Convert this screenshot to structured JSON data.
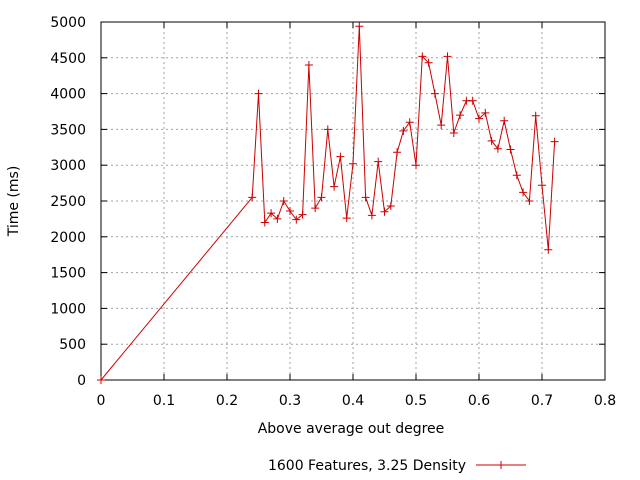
{
  "chart_data": {
    "type": "line",
    "title": "",
    "xlabel": "Above average out degree",
    "ylabel": "Time (ms)",
    "xlim": [
      0,
      0.8
    ],
    "ylim": [
      0,
      5000
    ],
    "xticks": [
      "0",
      "0.1",
      "0.2",
      "0.3",
      "0.4",
      "0.5",
      "0.6",
      "0.7",
      "0.8"
    ],
    "yticks": [
      "0",
      "500",
      "1000",
      "1500",
      "2000",
      "2500",
      "3000",
      "3500",
      "4000",
      "4500",
      "5000"
    ],
    "grid": true,
    "legend_position": "bottom",
    "series": [
      {
        "name": "1600 Features, 3.25 Density",
        "color": "#cc0000",
        "marker": "plus",
        "x": [
          0,
          0.24,
          0.25,
          0.26,
          0.27,
          0.28,
          0.29,
          0.3,
          0.31,
          0.32,
          0.33,
          0.34,
          0.35,
          0.36,
          0.37,
          0.38,
          0.39,
          0.4,
          0.41,
          0.42,
          0.43,
          0.44,
          0.45,
          0.46,
          0.47,
          0.48,
          0.49,
          0.5,
          0.51,
          0.52,
          0.53,
          0.54,
          0.55,
          0.56,
          0.57,
          0.58,
          0.59,
          0.6,
          0.61,
          0.62,
          0.63,
          0.64,
          0.65,
          0.66,
          0.67,
          0.68,
          0.69,
          0.7,
          0.71,
          0.72
        ],
        "y": [
          0,
          2550,
          4000,
          2200,
          2330,
          2250,
          2500,
          2360,
          2240,
          2310,
          4400,
          2400,
          2550,
          3500,
          2700,
          3120,
          2260,
          3020,
          4940,
          2550,
          2300,
          3050,
          2350,
          2430,
          3180,
          3480,
          3600,
          3000,
          4520,
          4430,
          4000,
          3560,
          4520,
          3450,
          3700,
          3900,
          3900,
          3650,
          3730,
          3340,
          3230,
          3620,
          3220,
          2860,
          2620,
          2500,
          3690,
          2720,
          1820,
          3330
        ]
      }
    ]
  }
}
